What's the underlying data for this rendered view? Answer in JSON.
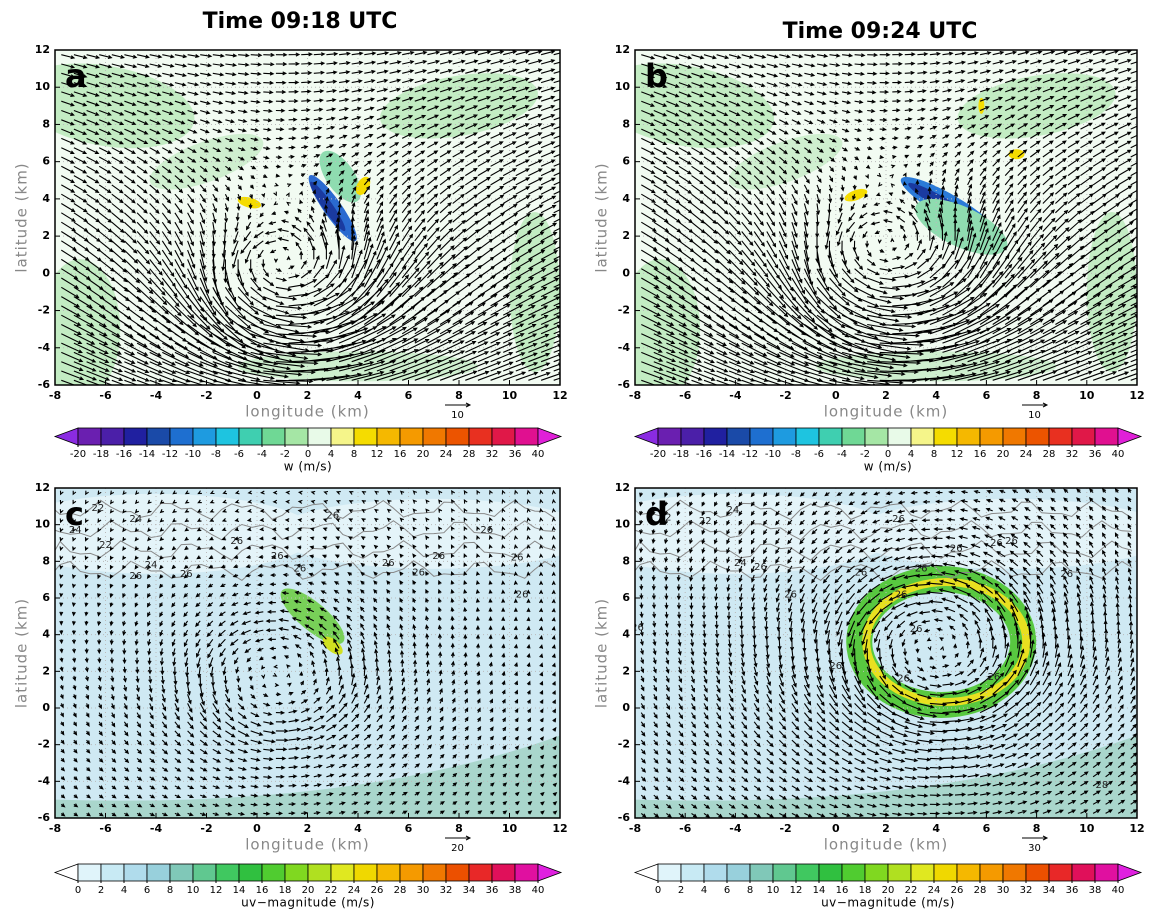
{
  "chart_data": [
    {
      "type": "vector-field",
      "title": "Time 09:18 UTC",
      "panel_label": "a",
      "xlabel": "longitude (km)",
      "ylabel": "latitude (km)",
      "xlim": [
        -8,
        12
      ],
      "ylim": [
        -6,
        12
      ],
      "xticks": [
        -8,
        -6,
        -4,
        -2,
        0,
        2,
        4,
        6,
        8,
        10,
        12
      ],
      "yticks": [
        -6,
        -4,
        -2,
        0,
        2,
        4,
        6,
        8,
        10,
        12
      ],
      "reference_vector": 10,
      "colorbar": {
        "label": "w (m/s)",
        "ticks": [
          -20,
          -18,
          -16,
          -14,
          -12,
          -10,
          -8,
          -6,
          -4,
          -2,
          0,
          4,
          8,
          12,
          16,
          20,
          24,
          28,
          32,
          36,
          40
        ],
        "colors": [
          "#8a2be2",
          "#6a1fb0",
          "#4b1fa8",
          "#2020a0",
          "#1a4aa8",
          "#1e6fd0",
          "#1e9be0",
          "#1ec4e0",
          "#3fcfb0",
          "#6fd895",
          "#a5e6a5",
          "#e8fae8",
          "#f5f58a",
          "#f5dc00",
          "#f5b800",
          "#f59a00",
          "#f07800",
          "#ec5400",
          "#e83020",
          "#e01848",
          "#e01090",
          "#e020d8"
        ]
      }
    },
    {
      "type": "vector-field",
      "title": "Time 09:24 UTC",
      "panel_label": "b",
      "xlabel": "longitude (km)",
      "ylabel": "latitude (km)",
      "xlim": [
        -8,
        12
      ],
      "ylim": [
        -6,
        12
      ],
      "xticks": [
        -8,
        -6,
        -4,
        -2,
        0,
        2,
        4,
        6,
        8,
        10,
        12
      ],
      "yticks": [
        -6,
        -4,
        -2,
        0,
        2,
        4,
        6,
        8,
        10,
        12
      ],
      "reference_vector": 10,
      "colorbar": {
        "label": "w (m/s)",
        "ticks": [
          -20,
          -18,
          -16,
          -14,
          -12,
          -10,
          -8,
          -6,
          -4,
          -2,
          0,
          4,
          8,
          12,
          16,
          20,
          24,
          28,
          32,
          36,
          40
        ],
        "colors": [
          "#8a2be2",
          "#6a1fb0",
          "#4b1fa8",
          "#2020a0",
          "#1a4aa8",
          "#1e6fd0",
          "#1e9be0",
          "#1ec4e0",
          "#3fcfb0",
          "#6fd895",
          "#a5e6a5",
          "#e8fae8",
          "#f5f58a",
          "#f5dc00",
          "#f5b800",
          "#f59a00",
          "#f07800",
          "#ec5400",
          "#e83020",
          "#e01848",
          "#e01090",
          "#e020d8"
        ]
      }
    },
    {
      "type": "vector-field",
      "panel_label": "c",
      "xlabel": "longitude (km)",
      "ylabel": "latitude (km)",
      "xlim": [
        -8,
        12
      ],
      "ylim": [
        -6,
        12
      ],
      "xticks": [
        -8,
        -6,
        -4,
        -2,
        0,
        2,
        4,
        6,
        8,
        10,
        12
      ],
      "yticks": [
        -6,
        -4,
        -2,
        0,
        2,
        4,
        6,
        8,
        10,
        12
      ],
      "reference_vector": 20,
      "contour_labels": [
        22,
        24,
        24,
        22,
        24,
        26,
        26,
        26,
        26,
        26,
        26,
        26,
        26,
        26,
        26,
        26,
        26
      ],
      "colorbar": {
        "label": "uv−magnitude (m/s)",
        "ticks": [
          0,
          2,
          4,
          6,
          8,
          10,
          12,
          14,
          16,
          18,
          20,
          22,
          24,
          26,
          28,
          30,
          32,
          34,
          36,
          38,
          40
        ],
        "colors": [
          "#ffffff",
          "#e0f4fa",
          "#c8eaf4",
          "#b0dcec",
          "#98d0dc",
          "#80c8b8",
          "#60c890",
          "#40c860",
          "#30c040",
          "#50cc30",
          "#80d820",
          "#b0e020",
          "#e0e820",
          "#f0d800",
          "#f5b800",
          "#f59a00",
          "#f07800",
          "#ec5000",
          "#e82828",
          "#e0105a",
          "#e010a0",
          "#e020e0"
        ]
      }
    },
    {
      "type": "vector-field",
      "panel_label": "d",
      "xlabel": "longitude (km)",
      "ylabel": "latitude (km)",
      "xlim": [
        -8,
        12
      ],
      "ylim": [
        -6,
        12
      ],
      "xticks": [
        -8,
        -6,
        -4,
        -2,
        0,
        2,
        4,
        6,
        8,
        10,
        12
      ],
      "yticks": [
        -6,
        -4,
        -2,
        0,
        2,
        4,
        6,
        8,
        10,
        12
      ],
      "reference_vector": 30,
      "contour_labels": [
        22,
        22,
        24,
        24,
        26,
        26,
        26,
        26,
        26,
        26,
        26,
        26,
        26,
        26,
        26,
        26,
        26,
        26,
        26,
        28
      ],
      "colorbar": {
        "label": "uv−magnitude (m/s)",
        "ticks": [
          0,
          2,
          4,
          6,
          8,
          10,
          12,
          14,
          16,
          18,
          20,
          22,
          24,
          26,
          28,
          30,
          32,
          34,
          36,
          38,
          40
        ],
        "colors": [
          "#ffffff",
          "#e0f4fa",
          "#c8eaf4",
          "#b0dcec",
          "#98d0dc",
          "#80c8b8",
          "#60c890",
          "#40c860",
          "#30c040",
          "#50cc30",
          "#80d820",
          "#b0e020",
          "#e0e820",
          "#f0d800",
          "#f5b800",
          "#f59a00",
          "#f07800",
          "#ec5000",
          "#e82828",
          "#e0105a",
          "#e010a0",
          "#e020e0"
        ]
      }
    }
  ]
}
